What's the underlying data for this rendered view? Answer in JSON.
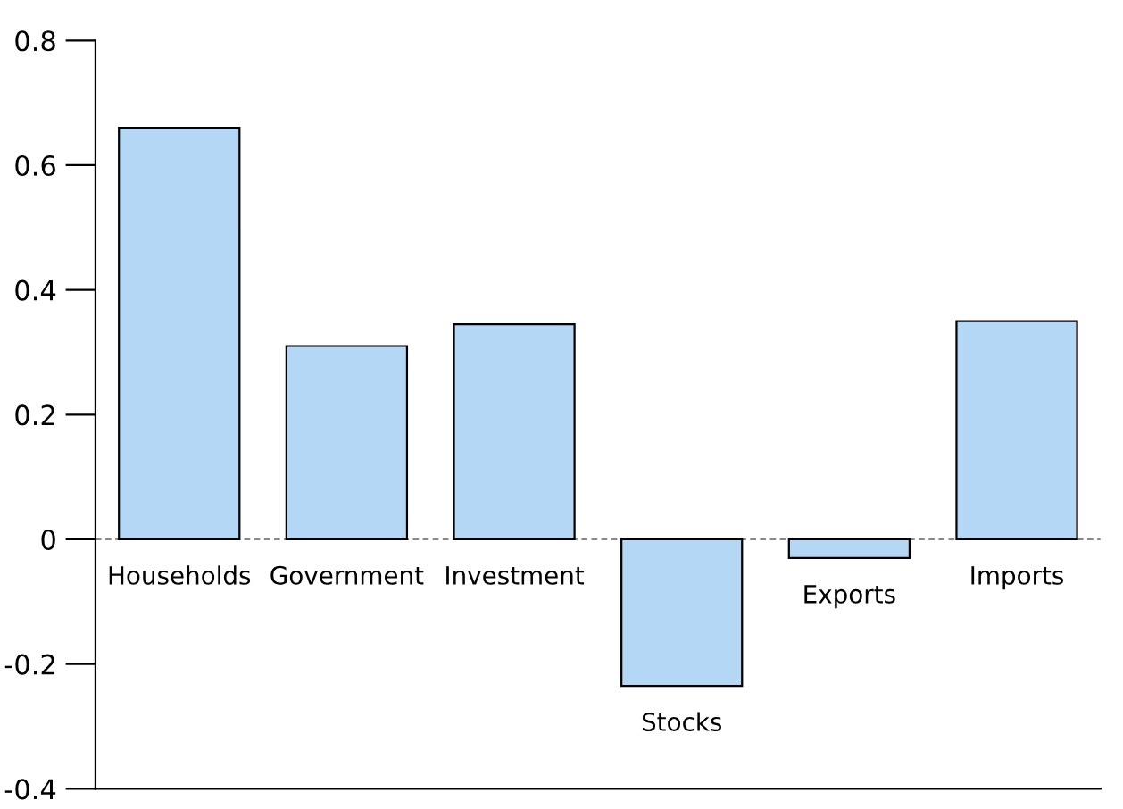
{
  "chart_data": {
    "type": "bar",
    "categories": [
      "Households",
      "Government",
      "Investment",
      "Stocks",
      "Exports",
      "Imports"
    ],
    "values": [
      0.66,
      0.31,
      0.345,
      -0.235,
      -0.03,
      0.35
    ],
    "color": "#b4d7f5",
    "ylim": [
      -0.4,
      0.8
    ],
    "yticks": [
      {
        "value": -0.4,
        "label": "-0.4"
      },
      {
        "value": -0.2,
        "label": "-0.2"
      },
      0,
      0.2,
      0.4,
      0.6,
      0.8
    ],
    "ref_lines": [
      {
        "axis": "y",
        "value": 0,
        "color": "#888888",
        "line_style": "dashed"
      }
    ],
    "grid": false,
    "legend": false
  }
}
